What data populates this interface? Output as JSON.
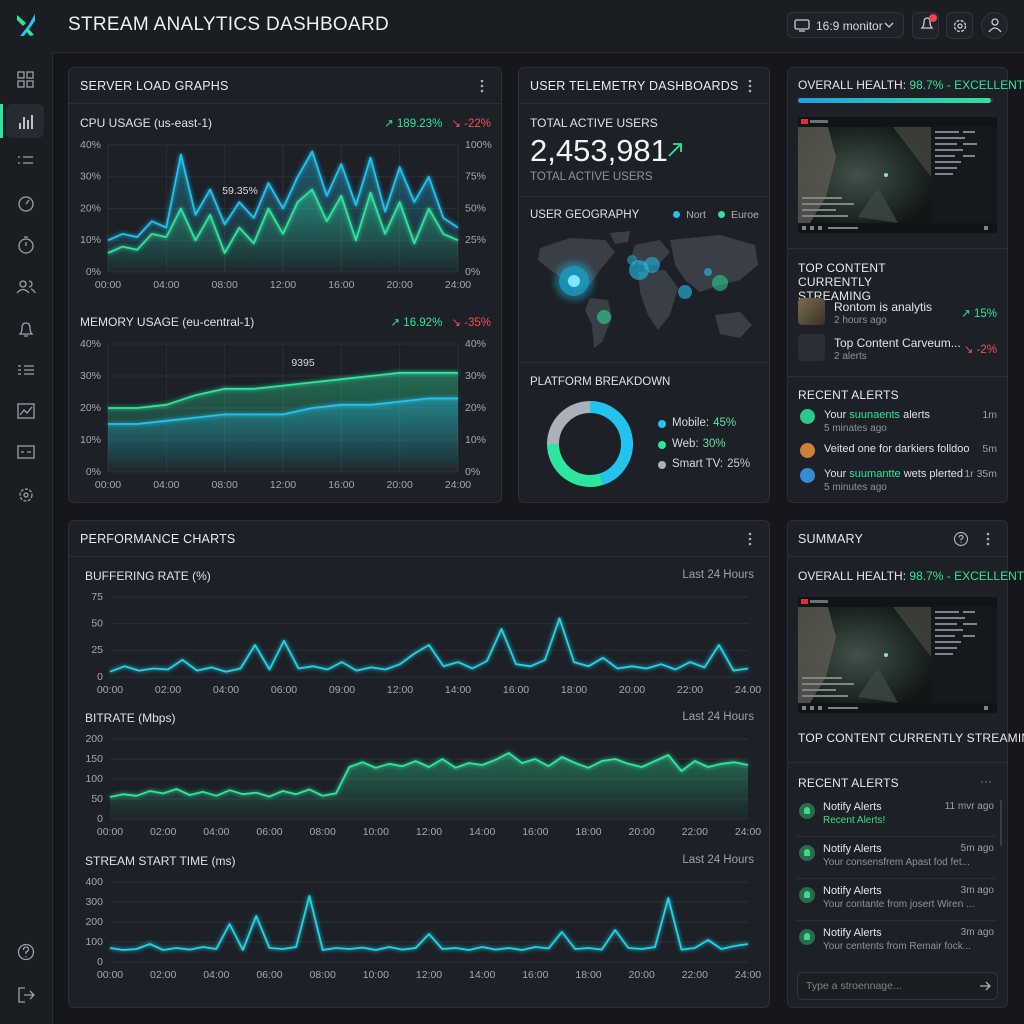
{
  "header": {
    "title": "STREAM ANALYTICS DASHBOARD",
    "monitor": "16:9 monitor"
  },
  "server_load": {
    "title": "SERVER LOAD GRAPHS",
    "charts": [
      {
        "type": "line",
        "title": "CPU USAGE (us-east-1)",
        "change_up": "↗ 189.23%",
        "change_down": "↘ -22%",
        "annotation": "59.35%",
        "x": [
          0,
          1,
          2,
          3,
          4,
          5,
          6,
          7,
          8,
          9,
          10,
          11,
          12,
          13,
          14,
          15,
          16,
          17,
          18,
          19,
          20,
          21,
          22,
          23,
          24
        ],
        "xlim": [
          0,
          24
        ],
        "xticks": [
          {
            "value": 0,
            "label": "00:00"
          },
          {
            "value": 4,
            "label": "04:00"
          },
          {
            "value": 8,
            "label": "08:00"
          },
          {
            "value": 12,
            "label": "12:00"
          },
          {
            "value": 16,
            "label": "16:00"
          },
          {
            "value": 20,
            "label": "20:00"
          },
          {
            "value": 24,
            "label": "24:00"
          }
        ],
        "ylim": [
          0,
          40
        ],
        "yticks": [
          {
            "value": 0,
            "label": "0%"
          },
          {
            "value": 10,
            "label": "10%"
          },
          {
            "value": 20,
            "label": "20%"
          },
          {
            "value": 30,
            "label": "30%"
          },
          {
            "value": 40,
            "label": "40%"
          }
        ],
        "y2lim": [
          0,
          100
        ],
        "y2ticks": [
          {
            "value": 0,
            "label": "0%"
          },
          {
            "value": 25,
            "label": "25%"
          },
          {
            "value": 50,
            "label": "50%"
          },
          {
            "value": 75,
            "label": "75%"
          },
          {
            "value": 100,
            "label": "100%"
          }
        ],
        "grid": [
          "x",
          "y"
        ],
        "series": [
          {
            "color": "#22c3ee",
            "area": true,
            "values": [
              10,
              12,
              11,
              16,
              14,
              37,
              18,
              26,
              15,
              22,
              17,
              28,
              20,
              30,
              38,
              24,
              34,
              21,
              36,
              19,
              33,
              22,
              30,
              17,
              14
            ]
          },
          {
            "color": "#2ee59d",
            "area": true,
            "values": [
              6,
              8,
              7,
              12,
              11,
              20,
              10,
              18,
              6,
              14,
              9,
              20,
              12,
              22,
              26,
              16,
              24,
              10,
              25,
              12,
              22,
              9,
              20,
              12,
              10
            ]
          }
        ]
      },
      {
        "type": "line",
        "title": "MEMORY USAGE (eu-central-1)",
        "change_up": "↗ 16.92%",
        "change_down": "↘ -35%",
        "annotation": "9395",
        "x": [
          0,
          2,
          4,
          6,
          8,
          10,
          12,
          14,
          16,
          18,
          20,
          22,
          24
        ],
        "xlim": [
          0,
          24
        ],
        "xticks": [
          {
            "value": 0,
            "label": "00:00"
          },
          {
            "value": 4,
            "label": "04:00"
          },
          {
            "value": 8,
            "label": "08:00"
          },
          {
            "value": 12,
            "label": "12:00"
          },
          {
            "value": 16,
            "label": "16:00"
          },
          {
            "value": 20,
            "label": "20:00"
          },
          {
            "value": 24,
            "label": "24:00"
          }
        ],
        "ylim": [
          0,
          40
        ],
        "yticks": [
          {
            "value": 0,
            "label": "0%"
          },
          {
            "value": 10,
            "label": "10%"
          },
          {
            "value": 20,
            "label": "20%"
          },
          {
            "value": 30,
            "label": "30%"
          },
          {
            "value": 40,
            "label": "40%"
          }
        ],
        "y2lim": [
          0,
          40
        ],
        "y2ticks": [
          {
            "value": 0,
            "label": "0%"
          },
          {
            "value": 10,
            "label": "10%"
          },
          {
            "value": 20,
            "label": "20%"
          },
          {
            "value": 30,
            "label": "30%"
          },
          {
            "value": 40,
            "label": "40%"
          }
        ],
        "grid": [
          "x",
          "y"
        ],
        "series": [
          {
            "color": "#2ee59d",
            "area": true,
            "values": [
              20,
              20,
              21,
              24,
              26,
              26,
              27,
              28,
              29,
              30,
              31,
              31,
              31
            ]
          },
          {
            "color": "#22c3ee",
            "area": true,
            "values": [
              15,
              15,
              16,
              17,
              18,
              18,
              18,
              20,
              21,
              21,
              22,
              23,
              23
            ]
          }
        ]
      }
    ]
  },
  "telemetry": {
    "title": "USER TELEMETRY DASHBOARDS",
    "active_label": "TOTAL ACTIVE USERS",
    "active_value": "2,453,981",
    "active_sub": "TOTAL ACTIVE USERS",
    "geo_title": "USER GEOGRAPHY",
    "geo_legend": [
      {
        "name": "Nort",
        "color": "#22c3ee"
      },
      {
        "name": "Euroe",
        "color": "#2ee59d"
      }
    ],
    "platform_title": "PLATFORM BREAKDOWN",
    "platform": {
      "type": "pie",
      "categories": [
        "Mobile:",
        "Web:",
        "Smart TV:"
      ],
      "values": [
        45,
        30,
        25
      ],
      "value_labels": [
        "45%",
        "30%",
        "25%"
      ],
      "colors": [
        "#22c3ee",
        "#2ee59d",
        "#aab1ba"
      ],
      "label_colors": [
        "#5fe0a8",
        "#5fe0a8",
        "#c4c9cf"
      ]
    }
  },
  "health_panel": {
    "health_label": "OVERALL HEALTH:",
    "health_value": 98.7,
    "health_text": "98.7% - EXCELLENT",
    "top_title": "TOP CONTENT CURRENTLY STREAMING",
    "top_items": [
      {
        "title": "Rontom is analytis",
        "meta": "2 hours ago",
        "change": "↗ 15%",
        "color": "#2ee59d"
      },
      {
        "title": "Top Content Carveum...",
        "meta": "2 alerts",
        "change": "↘ -2%",
        "color": "#f05252"
      }
    ],
    "alerts_title": "RECENT ALERTS",
    "alerts": [
      {
        "parts": [
          "Your ",
          "suunaents",
          " alerts"
        ],
        "time": "1m",
        "meta": "5 minates ago",
        "icon_color": "#2ee59d"
      },
      {
        "parts": [
          "Veited one for darkiers folldoo"
        ],
        "time": "5m",
        "icon_color": "#f0913a"
      },
      {
        "parts": [
          "Your ",
          "suumantte",
          " wets plerted"
        ],
        "time": "1r 35m",
        "meta": "5 minutes ago",
        "icon_color": "#3aa0f0"
      }
    ]
  },
  "performance": {
    "title": "PERFORMANCE CHARTS",
    "charts": [
      {
        "type": "line",
        "title": "BUFFERING RATE (%)",
        "range": "Last 24 Hours",
        "x": [
          0,
          0.25,
          0.5,
          0.75,
          1,
          1.25,
          1.5,
          1.75,
          2,
          2.25,
          2.5,
          2.75,
          3,
          3.25,
          3.5,
          3.75,
          4,
          4.25,
          4.5,
          4.75,
          5,
          5.25,
          5.5,
          5.75,
          6,
          6.25,
          6.5,
          6.75,
          7,
          7.25,
          7.5,
          7.75,
          8,
          8.25,
          8.5,
          8.75,
          9,
          9.25,
          9.5,
          9.75,
          10,
          10.25,
          10.5,
          10.75,
          11
        ],
        "xlim": [
          0,
          11
        ],
        "xticks": [
          {
            "value": 0,
            "label": "00:00"
          },
          {
            "value": 1,
            "label": "02:00"
          },
          {
            "value": 2,
            "label": "04:00"
          },
          {
            "value": 3,
            "label": "06:00"
          },
          {
            "value": 4,
            "label": "09:00"
          },
          {
            "value": 5,
            "label": "12:00"
          },
          {
            "value": 6,
            "label": "14:00"
          },
          {
            "value": 7,
            "label": "16:00"
          },
          {
            "value": 8,
            "label": "18:00"
          },
          {
            "value": 9,
            "label": "20:00"
          },
          {
            "value": 10,
            "label": "22:00"
          },
          {
            "value": 11,
            "label": "24.00"
          }
        ],
        "ylim": [
          0,
          75
        ],
        "yticks": [
          0,
          25,
          50,
          75
        ],
        "grid": [
          "y"
        ],
        "series": [
          {
            "color": "#22d3e6",
            "area": false,
            "values": [
              5,
              10,
              6,
              8,
              7,
              16,
              6,
              9,
              5,
              8,
              30,
              7,
              34,
              8,
              10,
              7,
              14,
              6,
              9,
              7,
              12,
              22,
              30,
              10,
              14,
              8,
              15,
              45,
              12,
              10,
              16,
              55,
              14,
              10,
              18,
              8,
              10,
              8,
              12,
              7,
              14,
              9,
              30,
              6,
              8
            ]
          }
        ]
      },
      {
        "type": "line",
        "title": "BITRATE (Mbps)",
        "range": "Last 24 Hours",
        "x": [
          0,
          0.5,
          1,
          1.5,
          2,
          2.5,
          3,
          3.5,
          4,
          4.5,
          5,
          5.5,
          6,
          6.5,
          7,
          7.5,
          8,
          8.5,
          9,
          9.5,
          10,
          10.5,
          11,
          11.5,
          12,
          12.5,
          13,
          13.5,
          14,
          14.5,
          15,
          15.5,
          16,
          16.5,
          17,
          17.5,
          18,
          18.5,
          19,
          19.5,
          20,
          20.5,
          21,
          21.5,
          22,
          22.5,
          23,
          23.5,
          24
        ],
        "xlim": [
          0,
          24
        ],
        "xticks": [
          {
            "value": 0,
            "label": "00:00"
          },
          {
            "value": 2,
            "label": "02:00"
          },
          {
            "value": 4,
            "label": "04:00"
          },
          {
            "value": 6,
            "label": "06:00"
          },
          {
            "value": 8,
            "label": "08:00"
          },
          {
            "value": 10,
            "label": "10:00"
          },
          {
            "value": 12,
            "label": "12:00"
          },
          {
            "value": 14,
            "label": "14:00"
          },
          {
            "value": 16,
            "label": "16:00"
          },
          {
            "value": 18,
            "label": "18:00"
          },
          {
            "value": 20,
            "label": "20:00"
          },
          {
            "value": 22,
            "label": "22:00"
          },
          {
            "value": 24,
            "label": "24:00"
          }
        ],
        "ylim": [
          0,
          200
        ],
        "yticks": [
          0,
          50,
          100,
          150,
          200
        ],
        "grid": [
          "y"
        ],
        "series": [
          {
            "color": "#2ee59d",
            "area": true,
            "values": [
              55,
              62,
              58,
              70,
              64,
              75,
              60,
              68,
              58,
              72,
              62,
              66,
              56,
              70,
              62,
              74,
              58,
              64,
              130,
              142,
              128,
              138,
              132,
              145,
              130,
              150,
              128,
              140,
              135,
              148,
              165,
              140,
              150,
              132,
              155,
              140,
              128,
              145,
              150,
              138,
              130,
              145,
              160,
              120,
              145,
              130,
              138,
              142,
              135
            ]
          }
        ]
      },
      {
        "type": "line",
        "title": "STREAM START TIME (ms)",
        "range": "Last 24 Hours",
        "x": [
          0,
          0.5,
          1,
          1.5,
          2,
          2.5,
          3,
          3.5,
          4,
          4.5,
          5,
          5.5,
          6,
          6.5,
          7,
          7.5,
          8,
          8.5,
          9,
          9.5,
          10,
          10.5,
          11,
          11.5,
          12,
          12.5,
          13,
          13.5,
          14,
          14.5,
          15,
          15.5,
          16,
          16.5,
          17,
          17.5,
          18,
          18.5,
          19,
          19.5,
          20,
          20.5,
          21,
          21.5,
          22,
          22.5,
          23,
          23.5,
          24
        ],
        "xlim": [
          0,
          24
        ],
        "xticks": [
          {
            "value": 0,
            "label": "00:00"
          },
          {
            "value": 2,
            "label": "02:00"
          },
          {
            "value": 4,
            "label": "04:00"
          },
          {
            "value": 6,
            "label": "06:00"
          },
          {
            "value": 8,
            "label": "08:00"
          },
          {
            "value": 10,
            "label": "10:00"
          },
          {
            "value": 12,
            "label": "12:00"
          },
          {
            "value": 14,
            "label": "14:00"
          },
          {
            "value": 16,
            "label": "16:00"
          },
          {
            "value": 18,
            "label": "18:00"
          },
          {
            "value": 20,
            "label": "20:00"
          },
          {
            "value": 22,
            "label": "22:00"
          },
          {
            "value": 24,
            "label": "24:00"
          }
        ],
        "ylim": [
          0,
          400
        ],
        "yticks": [
          0,
          100,
          200,
          300,
          400
        ],
        "grid": [
          "y"
        ],
        "series": [
          {
            "color": "#22d3e6",
            "area": false,
            "values": [
              70,
              60,
              65,
              90,
              60,
              70,
              62,
              75,
              65,
              190,
              60,
              230,
              70,
              65,
              75,
              330,
              60,
              70,
              65,
              72,
              60,
              75,
              62,
              70,
              140,
              65,
              70,
              60,
              75,
              62,
              70,
              60,
              75,
              68,
              150,
              65,
              70,
              62,
              160,
              70,
              65,
              75,
              320,
              62,
              70,
              110,
              65,
              80,
              90
            ]
          }
        ]
      }
    ]
  },
  "summary": {
    "title": "SUMMARY",
    "health_label": "OVERALL HEALTH:",
    "health_text": "98.7% - EXCELLENT",
    "top_title": "TOP CONTENT CURRENTLY STREAMING",
    "alerts_title": "RECENT ALERTS",
    "alerts_more": "···",
    "alerts": [
      {
        "title": "Notify Alerts",
        "time": "11 mvr ago",
        "meta": "Recent Alerts!",
        "meta_color": "#3ddc84"
      },
      {
        "title": "Notify Alerts",
        "time": "5m ago",
        "meta": "Your consensfrem Apast fod fet..."
      },
      {
        "title": "Notify Alerts",
        "time": "3m ago",
        "meta": "Your contante from josert Wiren ..."
      },
      {
        "title": "Notify Alerts",
        "time": "3m ago",
        "meta": "Your centents from Remair fock..."
      }
    ],
    "input_placeholder": "Type a stroennage..."
  }
}
